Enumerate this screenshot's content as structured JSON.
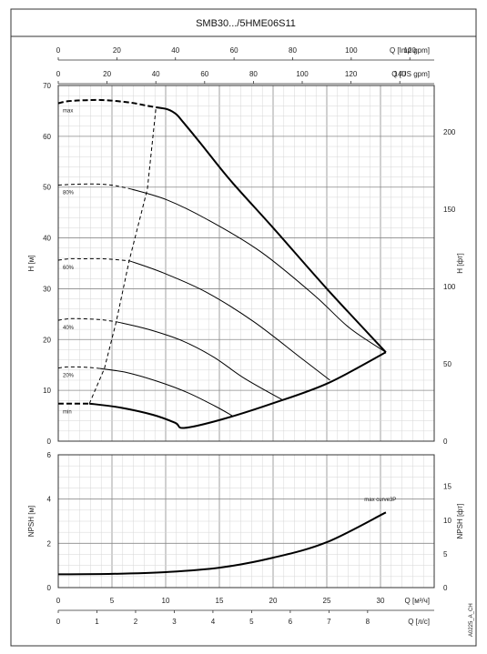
{
  "title": "SMB30.../5HME06S11",
  "code": "A0225_A_CH",
  "top_axes": [
    {
      "label": "Q [Imp gpm]",
      "ticks": [
        0,
        20,
        40,
        60,
        80,
        100,
        120
      ]
    },
    {
      "label": "Q [US gpm]",
      "ticks": [
        0,
        20,
        40,
        60,
        80,
        100,
        120,
        140
      ]
    }
  ],
  "bottom_axes": [
    {
      "label": "Q [м³/ч]",
      "ticks": [
        0,
        5,
        10,
        15,
        20,
        25,
        30
      ]
    },
    {
      "label": "Q [л/с]",
      "ticks": [
        0,
        1,
        2,
        3,
        4,
        5,
        6,
        7,
        8
      ]
    }
  ],
  "chart_data": [
    {
      "type": "line",
      "name": "head",
      "xlabel": "Q [м³/ч]",
      "ylabel": "H [м]",
      "ylabel_right": "H [фт]",
      "xlim": [
        0,
        35
      ],
      "ylim": [
        0,
        70
      ],
      "yticks": [
        0,
        10,
        20,
        30,
        40,
        50,
        60,
        70
      ],
      "yticks_right": [
        0,
        50,
        100,
        150,
        200
      ],
      "grid": true,
      "series": [
        {
          "name": "max",
          "style": "bold",
          "dashed_x": [
            0,
            0.9,
            2.5,
            4.5,
            6.8,
            8.3,
            9.1
          ],
          "dashed_y": [
            66.5,
            66.9,
            67.1,
            67.1,
            66.6,
            66.0,
            65.7
          ],
          "x": [
            9.1,
            10.2,
            11.0,
            11.7,
            13.3,
            16.0,
            20.0,
            25.0,
            30.5
          ],
          "y": [
            65.7,
            65.3,
            64.3,
            62.6,
            58.5,
            51.4,
            42.0,
            30.0,
            17.5
          ]
        },
        {
          "name": "80%",
          "style": "thin",
          "dashed_x": [
            0,
            2.1,
            3.7,
            5.3,
            6.8
          ],
          "dashed_y": [
            50.4,
            50.6,
            50.6,
            50.3,
            49.6
          ],
          "x": [
            6.8,
            10.1,
            13.9,
            18.9,
            23.9,
            27.1,
            30.5
          ],
          "y": [
            49.6,
            47.5,
            43.6,
            37.2,
            28.6,
            22.3,
            17.5
          ]
        },
        {
          "name": "60%",
          "style": "thin",
          "dashed_x": [
            0,
            1.0,
            2.5,
            4.2,
            6.6
          ],
          "dashed_y": [
            35.6,
            35.9,
            35.9,
            35.9,
            35.5
          ],
          "x": [
            6.6,
            9.8,
            13.8,
            18.2,
            22.7,
            25.3
          ],
          "y": [
            35.5,
            33.1,
            29.3,
            23.5,
            16.2,
            12.0
          ]
        },
        {
          "name": "40%",
          "style": "thin",
          "dashed_x": [
            0,
            1.0,
            2.3,
            4.0,
            5.4
          ],
          "dashed_y": [
            23.8,
            24.1,
            24.1,
            23.9,
            23.5
          ],
          "x": [
            5.4,
            8.4,
            11.5,
            14.5,
            17.3,
            20.9
          ],
          "y": [
            23.5,
            22.0,
            19.8,
            16.5,
            12.4,
            8.1
          ]
        },
        {
          "name": "20%",
          "style": "thin",
          "dashed_x": [
            0,
            0.8,
            1.8,
            2.9,
            3.9
          ],
          "dashed_y": [
            14.4,
            14.6,
            14.6,
            14.5,
            14.3
          ],
          "x": [
            3.9,
            6.4,
            9.2,
            12.0,
            14.6,
            16.2
          ],
          "y": [
            14.3,
            13.5,
            11.8,
            9.6,
            6.9,
            5.0
          ]
        },
        {
          "name": "min",
          "style": "bold",
          "dashed_x": [
            0,
            1.4,
            2.9
          ],
          "dashed_y": [
            7.4,
            7.4,
            7.4
          ],
          "x": [
            2.9,
            5.8,
            8.8,
            10.9,
            11.7,
            15.1,
            19.9,
            25.1,
            30.5
          ],
          "y": [
            7.4,
            6.6,
            5.2,
            3.6,
            2.6,
            4.2,
            7.4,
            11.4,
            17.5
          ]
        },
        {
          "name": "",
          "style": "dashed",
          "x": [
            2.9,
            4.3,
            5.4,
            6.6,
            8.3,
            9.1
          ],
          "y": [
            7.4,
            14.3,
            23.5,
            35.5,
            49.6,
            65.7
          ]
        }
      ]
    },
    {
      "type": "line",
      "name": "npsh",
      "xlabel": "Q [м³/ч]",
      "ylabel": "NPSH [м]",
      "ylabel_right": "NPSH [фт]",
      "xlim": [
        0,
        35
      ],
      "ylim": [
        0,
        6
      ],
      "yticks": [
        0,
        2,
        4,
        6
      ],
      "yticks_right": [
        0,
        5,
        10,
        15
      ],
      "grid": true,
      "annotation": "max curve3P",
      "series": [
        {
          "name": "max curve3P",
          "style": "bold",
          "x": [
            0,
            5,
            10,
            15,
            20,
            25,
            30.5
          ],
          "y": [
            0.6,
            0.62,
            0.7,
            0.9,
            1.35,
            2.05,
            3.4
          ]
        }
      ]
    }
  ]
}
